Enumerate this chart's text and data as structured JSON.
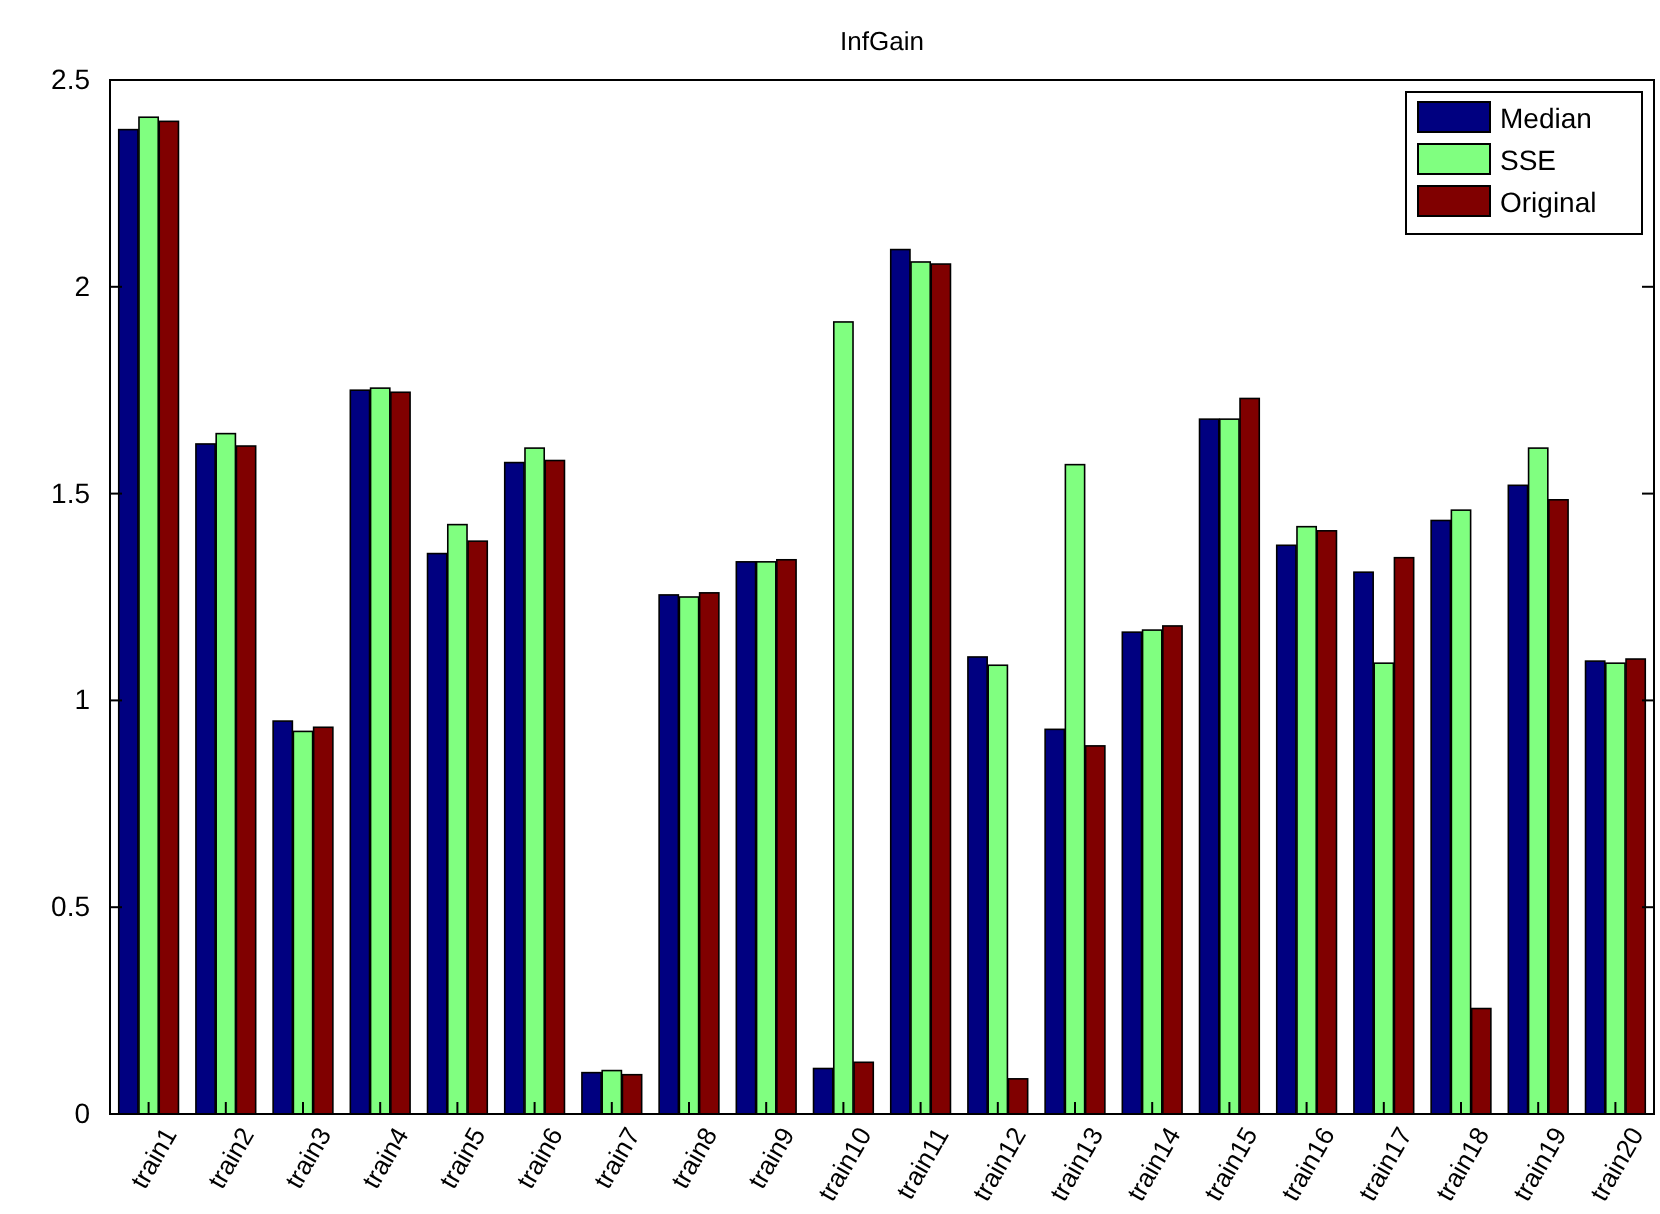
{
  "chart_data": {
    "type": "bar",
    "title": "InfGain",
    "categories": [
      "train1",
      "train2",
      "train3",
      "train4",
      "train5",
      "train6",
      "train7",
      "train8",
      "train9",
      "train10",
      "train11",
      "train12",
      "train13",
      "train14",
      "train15",
      "train16",
      "train17",
      "train18",
      "train19",
      "train20"
    ],
    "series": [
      {
        "name": "Median",
        "color": "#000080",
        "values": [
          2.38,
          1.62,
          0.95,
          1.75,
          1.355,
          1.575,
          0.1,
          1.255,
          1.335,
          0.11,
          2.09,
          1.105,
          0.93,
          1.165,
          1.68,
          1.375,
          1.31,
          1.435,
          1.52,
          1.095
        ]
      },
      {
        "name": "SSE",
        "color": "#80ff80",
        "values": [
          2.41,
          1.645,
          0.925,
          1.755,
          1.425,
          1.61,
          0.105,
          1.25,
          1.335,
          1.915,
          2.06,
          1.085,
          1.57,
          1.17,
          1.68,
          1.42,
          1.09,
          1.46,
          1.61,
          1.09
        ]
      },
      {
        "name": "Original",
        "color": "#800000",
        "values": [
          2.4,
          1.615,
          0.935,
          1.745,
          1.385,
          1.58,
          0.095,
          1.26,
          1.34,
          0.125,
          2.055,
          0.085,
          0.89,
          1.18,
          1.73,
          1.41,
          1.345,
          0.255,
          1.485,
          1.1
        ]
      }
    ],
    "ylim": [
      0,
      2.5
    ],
    "yticks": [
      0,
      0.5,
      1,
      1.5,
      2,
      2.5
    ],
    "grid": false,
    "legend": "top right"
  }
}
